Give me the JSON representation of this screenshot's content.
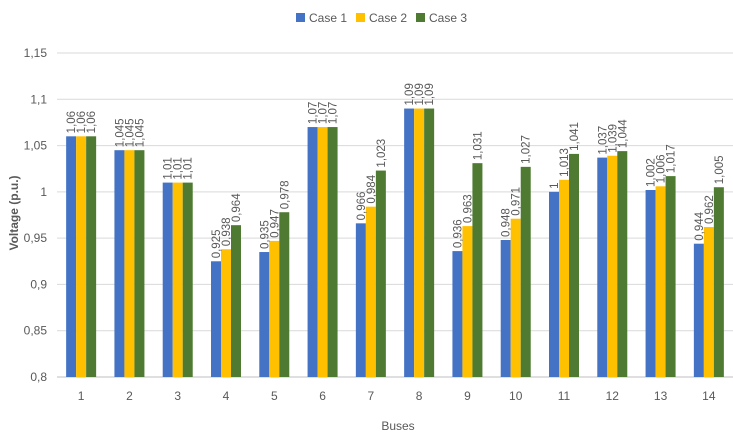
{
  "chart_data": {
    "type": "bar",
    "title": "",
    "xlabel": "Buses",
    "ylabel": "Voltage (p.u.)",
    "ylim": [
      0.8,
      1.15
    ],
    "y_ticks": [
      "0,8",
      "0,85",
      "0,9",
      "0,95",
      "1",
      "1,05",
      "1,1",
      "1,15"
    ],
    "categories": [
      "1",
      "2",
      "3",
      "4",
      "5",
      "6",
      "7",
      "8",
      "9",
      "10",
      "11",
      "12",
      "13",
      "14"
    ],
    "grid": true,
    "legend_position": "top-center",
    "series": [
      {
        "name": "Case 1",
        "color": "#4472C4",
        "values": [
          1.06,
          1.045,
          1.01,
          0.925,
          0.935,
          1.07,
          0.966,
          1.09,
          0.936,
          0.948,
          1.0,
          1.037,
          1.002,
          0.944
        ],
        "labels": [
          "1,06",
          "1,045",
          "1,01",
          "0,925",
          "0,935",
          "1,07",
          "0,966",
          "1,09",
          "0,936",
          "0,948",
          "1",
          "1,037",
          "1,002",
          "0,944"
        ]
      },
      {
        "name": "Case 2",
        "color": "#FFC000",
        "values": [
          1.06,
          1.045,
          1.01,
          0.938,
          0.947,
          1.07,
          0.984,
          1.09,
          0.963,
          0.971,
          1.013,
          1.039,
          1.006,
          0.962
        ],
        "labels": [
          "1,06",
          "1,045",
          "1,01",
          "0,938",
          "0,947",
          "1,07",
          "0,984",
          "1,09",
          "0,963",
          "0,971",
          "1,013",
          "1,039",
          "1,006",
          "0,962"
        ]
      },
      {
        "name": "Case 3",
        "color": "#4E7A31",
        "values": [
          1.06,
          1.045,
          1.01,
          0.964,
          0.978,
          1.07,
          1.023,
          1.09,
          1.031,
          1.027,
          1.041,
          1.044,
          1.017,
          1.005
        ],
        "labels": [
          "1,06",
          "1,045",
          "1,01",
          "0,964",
          "0,978",
          "1,07",
          "1,023",
          "1,09",
          "1,031",
          "1,027",
          "1,041",
          "1,044",
          "1,017",
          "1,005"
        ]
      }
    ]
  }
}
